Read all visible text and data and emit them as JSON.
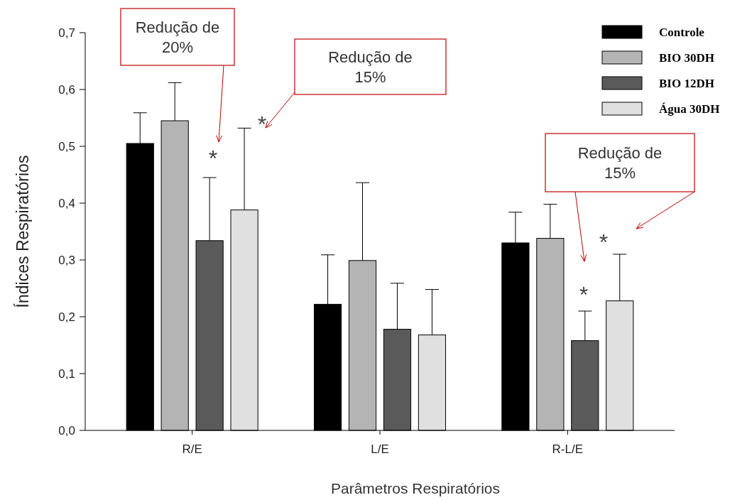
{
  "chart_data": {
    "type": "bar",
    "xlabel": "Parâmetros Respiratórios",
    "ylabel": "Índices Respiratórios",
    "categories": [
      "R/E",
      "L/E",
      "R-L/E"
    ],
    "series": [
      {
        "name": "Controle",
        "color": "#000000",
        "values": [
          0.505,
          0.222,
          0.33
        ],
        "errors": [
          [
            0.505,
            0.559
          ],
          [
            0.222,
            0.309
          ],
          [
            0.33,
            0.384
          ]
        ]
      },
      {
        "name": "BIO 30DH",
        "color": "#b4b4b4",
        "values": [
          0.545,
          0.299,
          0.338
        ],
        "errors": [
          [
            0.545,
            0.612
          ],
          [
            0.299,
            0.436
          ],
          [
            0.338,
            0.398
          ]
        ]
      },
      {
        "name": "BIO 12DH",
        "color": "#5a5a5a",
        "values": [
          0.334,
          0.178,
          0.158
        ],
        "errors": [
          [
            0.334,
            0.445
          ],
          [
            0.178,
            0.259
          ],
          [
            0.158,
            0.21
          ]
        ]
      },
      {
        "name": "Água 30DH",
        "color": "#e0e0e0",
        "values": [
          0.388,
          0.168,
          0.228
        ],
        "errors": [
          [
            0.388,
            0.532
          ],
          [
            0.168,
            0.248
          ],
          [
            0.228,
            0.31
          ]
        ]
      }
    ],
    "ylim": [
      0,
      0.7
    ],
    "yticks": [
      {
        "value": 0,
        "label": "0,0"
      },
      {
        "value": 0.1,
        "label": "0,1"
      },
      {
        "value": 0.2,
        "label": "0,2"
      },
      {
        "value": 0.3,
        "label": "0,3"
      },
      {
        "value": 0.4,
        "label": "0,4"
      },
      {
        "value": 0.5,
        "label": "0,5"
      },
      {
        "value": 0.6,
        "label": "0,6"
      },
      {
        "value": 0.7,
        "label": "0,7"
      }
    ],
    "grid": false,
    "legend": "top right",
    "annotations": [
      "Redução de 20%",
      "Redução de 15%",
      "Redução de 15%",
      "*",
      "*",
      "*",
      "*"
    ]
  }
}
